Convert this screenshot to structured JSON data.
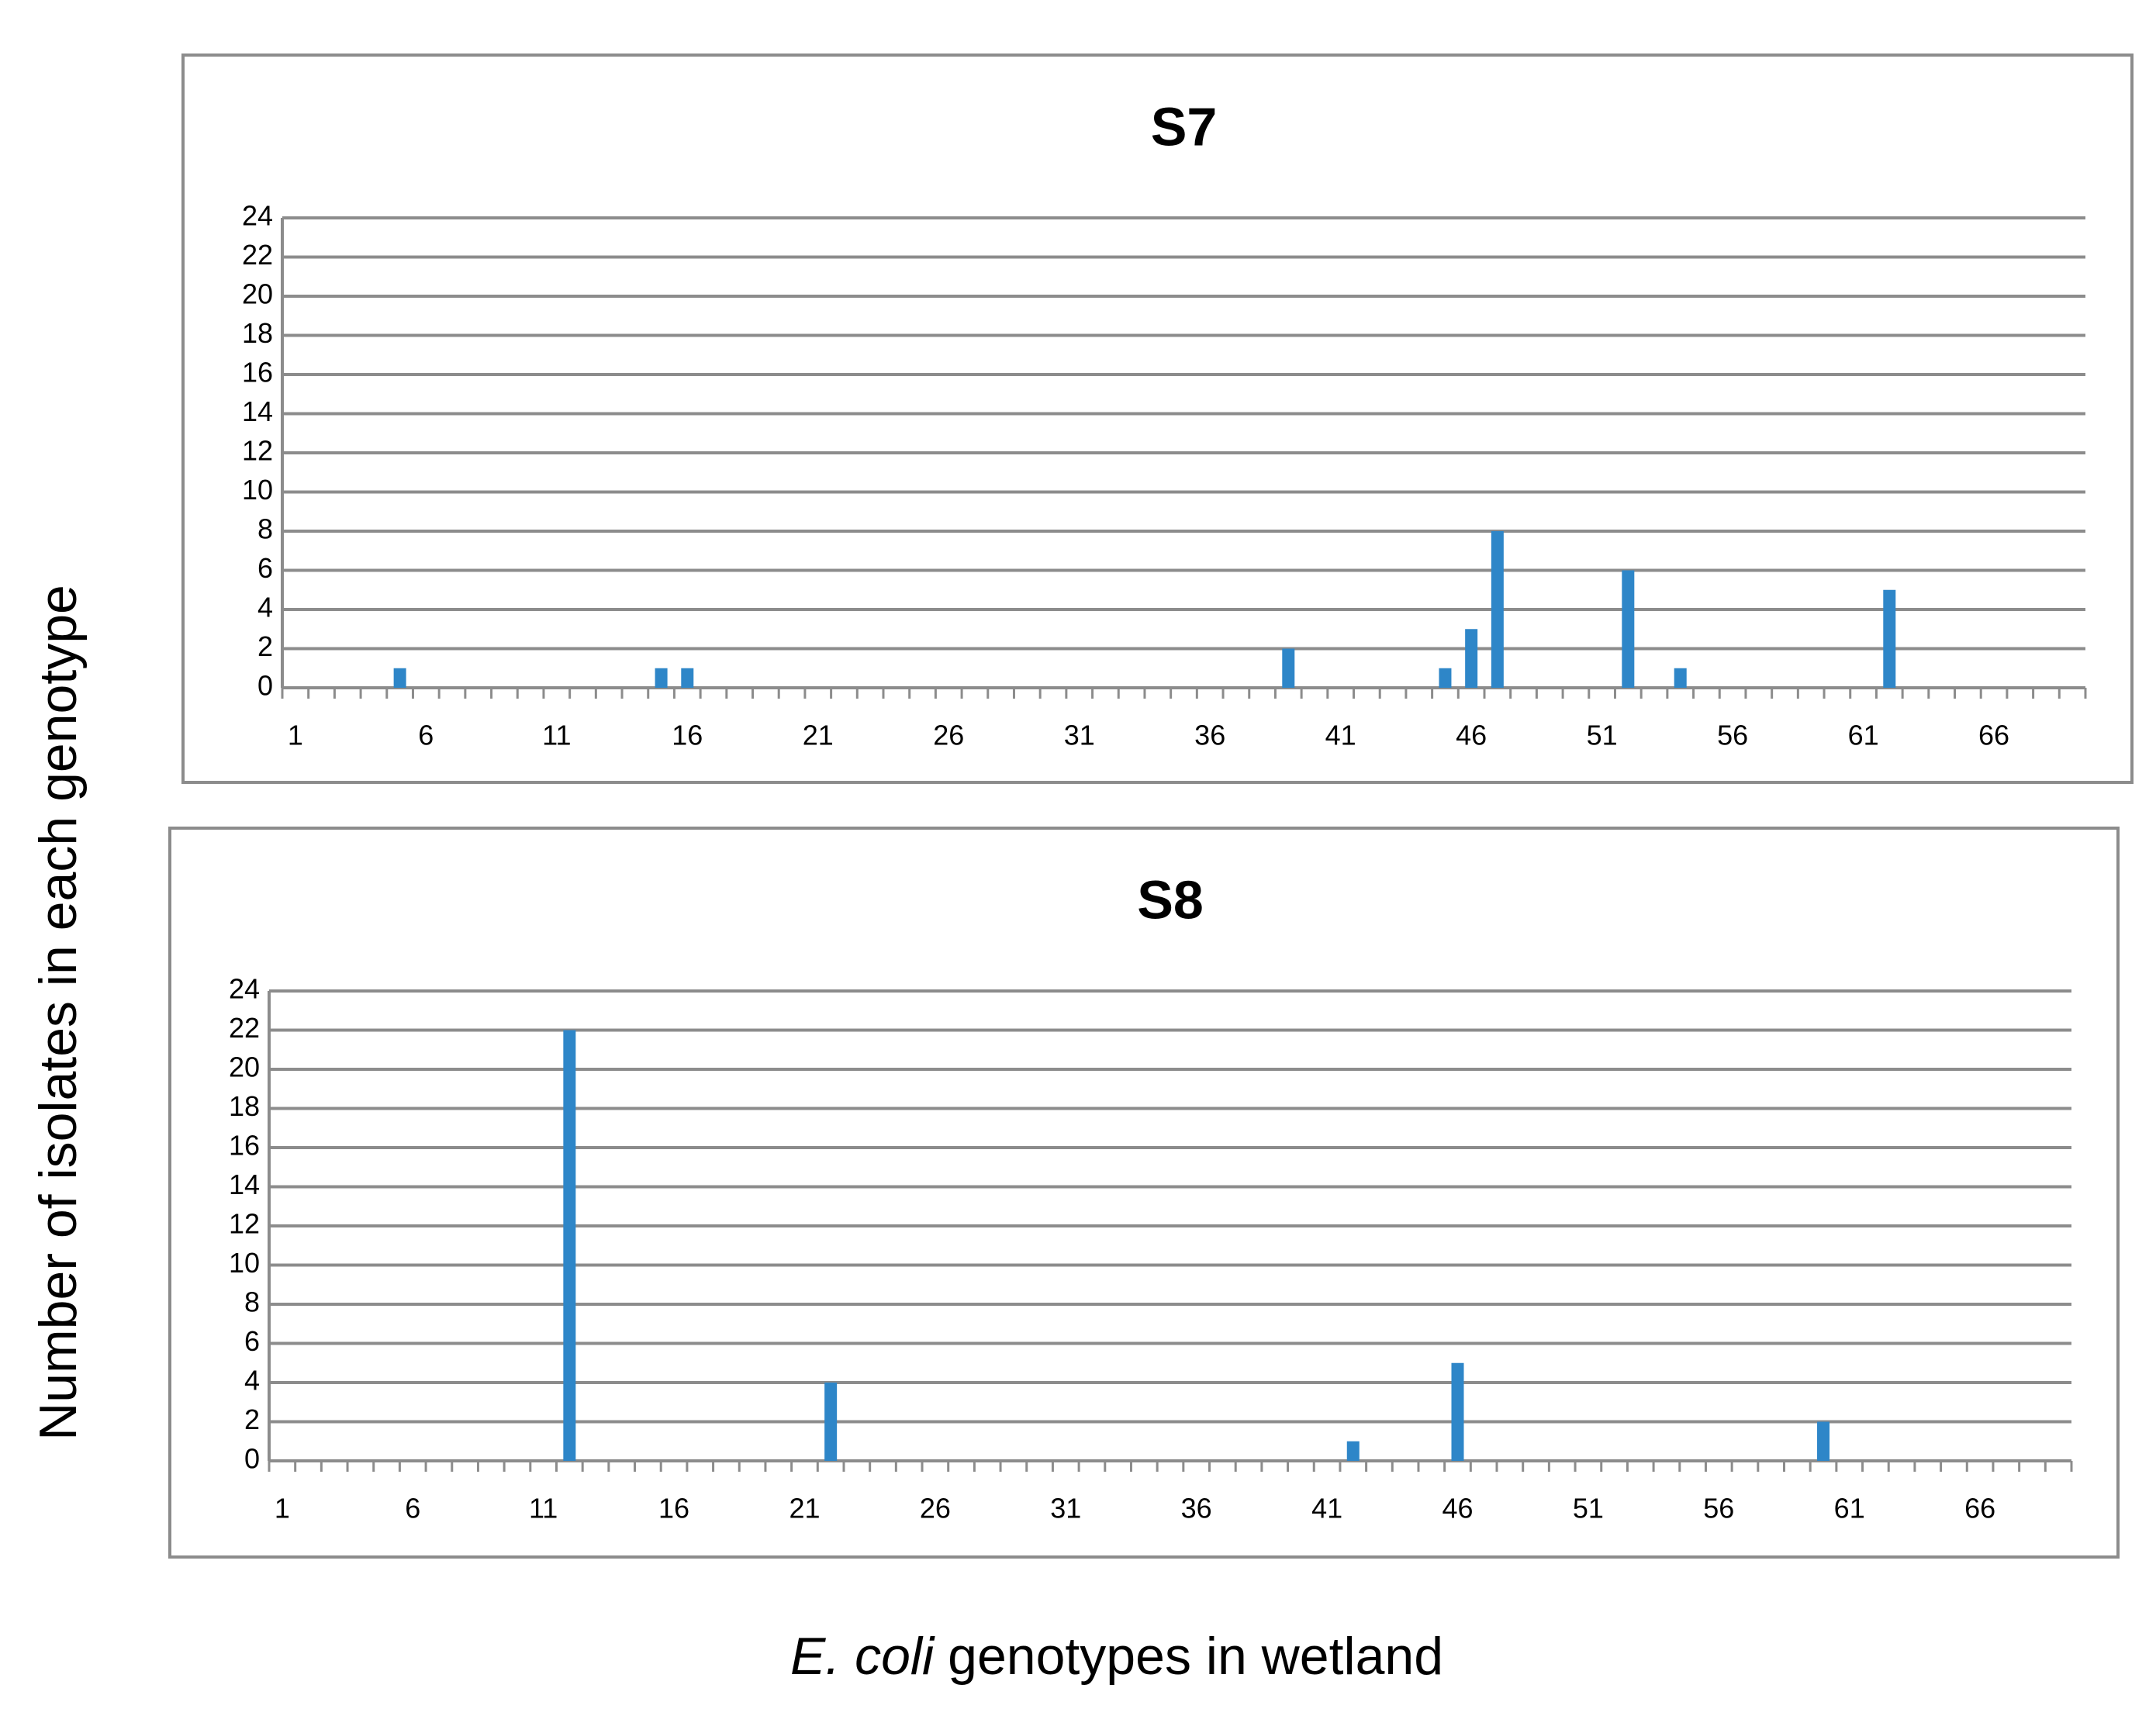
{
  "chart_data": [
    {
      "type": "bar",
      "title": "S7",
      "categories": [
        "1",
        null,
        null,
        null,
        null,
        "6",
        null,
        null,
        null,
        null,
        "11",
        null,
        null,
        null,
        null,
        "16",
        null,
        null,
        null,
        null,
        "21",
        null,
        null,
        null,
        null,
        "26",
        null,
        null,
        null,
        null,
        "31",
        null,
        null,
        null,
        null,
        "36",
        null,
        null,
        null,
        null,
        "41",
        null,
        null,
        null,
        null,
        "46",
        null,
        null,
        null,
        null,
        "51",
        null,
        null,
        null,
        null,
        "56",
        null,
        null,
        null,
        null,
        "61",
        null,
        null,
        null,
        null,
        "66",
        null,
        null,
        null
      ],
      "values": [
        0,
        0,
        0,
        0,
        1,
        0,
        0,
        0,
        0,
        0,
        0,
        0,
        0,
        0,
        1,
        1,
        0,
        0,
        0,
        0,
        0,
        0,
        0,
        0,
        0,
        0,
        0,
        0,
        0,
        0,
        0,
        0,
        0,
        0,
        0,
        0,
        0,
        0,
        2,
        0,
        0,
        0,
        0,
        0,
        1,
        3,
        8,
        0,
        0,
        0,
        0,
        6,
        0,
        1,
        0,
        0,
        0,
        0,
        0,
        0,
        0,
        5,
        0,
        0,
        0,
        0,
        0,
        0,
        0
      ],
      "color": "#2e86c8",
      "ylim": [
        0,
        24
      ],
      "yticks": [
        0,
        2,
        4,
        6,
        8,
        10,
        12,
        14,
        16,
        18,
        20,
        22,
        24
      ],
      "grid": true
    },
    {
      "type": "bar",
      "title": "S8",
      "categories": [
        "1",
        null,
        null,
        null,
        null,
        "6",
        null,
        null,
        null,
        null,
        "11",
        null,
        null,
        null,
        null,
        "16",
        null,
        null,
        null,
        null,
        "21",
        null,
        null,
        null,
        null,
        "26",
        null,
        null,
        null,
        null,
        "31",
        null,
        null,
        null,
        null,
        "36",
        null,
        null,
        null,
        null,
        "41",
        null,
        null,
        null,
        null,
        "46",
        null,
        null,
        null,
        null,
        "51",
        null,
        null,
        null,
        null,
        "56",
        null,
        null,
        null,
        null,
        "61",
        null,
        null,
        null,
        null,
        "66",
        null,
        null,
        null
      ],
      "values": [
        0,
        0,
        0,
        0,
        0,
        0,
        0,
        0,
        0,
        0,
        0,
        22,
        0,
        0,
        0,
        0,
        0,
        0,
        0,
        0,
        0,
        4,
        0,
        0,
        0,
        0,
        0,
        0,
        0,
        0,
        0,
        0,
        0,
        0,
        0,
        0,
        0,
        0,
        0,
        0,
        0,
        1,
        0,
        0,
        0,
        5,
        0,
        0,
        0,
        0,
        0,
        0,
        0,
        0,
        0,
        0,
        0,
        0,
        0,
        2,
        0,
        0,
        0,
        0,
        0,
        0,
        0,
        0,
        0
      ],
      "color": "#2e86c8",
      "ylim": [
        0,
        24
      ],
      "yticks": [
        0,
        2,
        4,
        6,
        8,
        10,
        12,
        14,
        16,
        18,
        20,
        22,
        24
      ],
      "grid": true
    }
  ],
  "ylabel": "Number of isolates in each genotype",
  "xlabel": [
    {
      "text": "E. coli",
      "italic": true
    },
    {
      "text": "genotypes in wetland",
      "italic": false
    }
  ]
}
